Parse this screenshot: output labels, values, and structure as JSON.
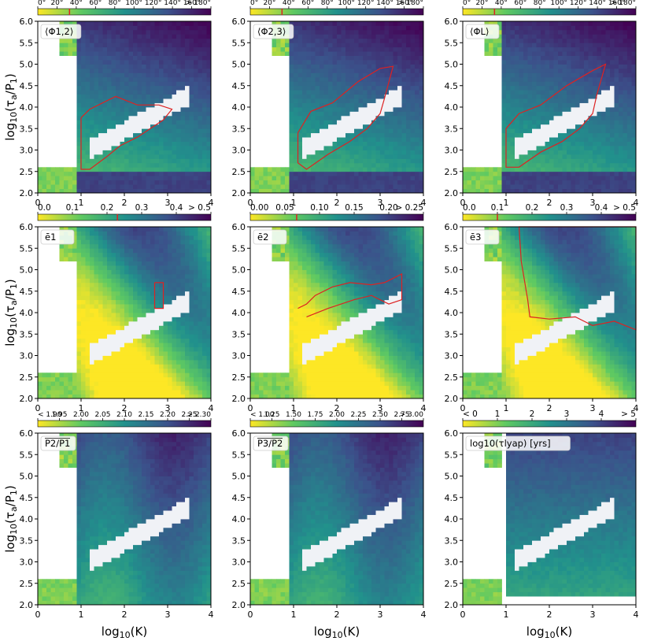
{
  "figure": {
    "x_ticks": [
      "0",
      "1",
      "2",
      "3",
      "4"
    ],
    "y_ticks": [
      "2.0",
      "2.5",
      "3.0",
      "3.5",
      "4.0",
      "4.5",
      "5.0",
      "5.5",
      "6.0"
    ],
    "xlabel_base": "log",
    "xlabel_sub": "10",
    "xlabel_arg": "(K)",
    "ylabel_base": "log",
    "ylabel_sub": "10",
    "ylabel_arg": "(τ",
    "ylabel_sub2": "a",
    "ylabel_tail": "/P",
    "ylabel_sub3": "1",
    "ylabel_end": ")"
  },
  "chart_data": [
    {
      "type": "heatmap",
      "panel": "phi12",
      "legend_text": "⟨Φ1,2⟩",
      "colorbar_ticks": [
        "0°",
        "20°",
        "40°",
        "60°",
        "80°",
        "100°",
        "120°",
        "140°",
        "160°",
        "> 180°"
      ],
      "colorbar_range": [
        0,
        180
      ],
      "colorbar_marker": 33,
      "xlim": [
        0,
        4
      ],
      "ylim": [
        2,
        6
      ],
      "colormap": "viridis_r",
      "contour_color": "#dd2222",
      "contour_outline": [
        [
          1.0,
          3.75
        ],
        [
          1.0,
          2.55
        ],
        [
          1.2,
          2.55
        ],
        [
          1.6,
          2.85
        ],
        [
          1.9,
          3.1
        ],
        [
          2.3,
          3.3
        ],
        [
          2.6,
          3.5
        ],
        [
          2.9,
          3.7
        ],
        [
          3.1,
          3.95
        ],
        [
          2.8,
          4.05
        ],
        [
          2.3,
          4.05
        ],
        [
          1.8,
          4.25
        ],
        [
          1.2,
          3.95
        ],
        [
          1.0,
          3.75
        ]
      ]
    },
    {
      "type": "heatmap",
      "panel": "phi23",
      "legend_text": "⟨Φ2,3⟩",
      "colorbar_ticks": [
        "0°",
        "20°",
        "40°",
        "60°",
        "80°",
        "100°",
        "120°",
        "140°",
        "160°",
        "> 180°"
      ],
      "colorbar_range": [
        0,
        180
      ],
      "colorbar_marker": 33,
      "xlim": [
        0,
        4
      ],
      "ylim": [
        2,
        6
      ],
      "colormap": "viridis_r",
      "contour_color": "#dd2222",
      "contour_outline": [
        [
          1.1,
          3.4
        ],
        [
          1.1,
          2.7
        ],
        [
          1.3,
          2.55
        ],
        [
          1.8,
          2.9
        ],
        [
          2.3,
          3.2
        ],
        [
          2.7,
          3.5
        ],
        [
          3.0,
          3.85
        ],
        [
          3.1,
          4.2
        ],
        [
          3.3,
          4.95
        ],
        [
          3.0,
          4.9
        ],
        [
          2.5,
          4.6
        ],
        [
          1.9,
          4.1
        ],
        [
          1.4,
          3.9
        ],
        [
          1.1,
          3.4
        ]
      ]
    },
    {
      "type": "heatmap",
      "panel": "phiL",
      "legend_text": "⟨ΦL⟩",
      "colorbar_ticks": [
        "0°",
        "20°",
        "40°",
        "60°",
        "80°",
        "100°",
        "120°",
        "140°",
        "160°",
        "> 180°"
      ],
      "colorbar_range": [
        0,
        180
      ],
      "colorbar_marker": 33,
      "xlim": [
        0,
        4
      ],
      "ylim": [
        2,
        6
      ],
      "colormap": "viridis_r",
      "contour_color": "#dd2222",
      "contour_outline": [
        [
          1.0,
          3.5
        ],
        [
          1.0,
          2.6
        ],
        [
          1.3,
          2.6
        ],
        [
          1.8,
          2.95
        ],
        [
          2.3,
          3.2
        ],
        [
          2.7,
          3.5
        ],
        [
          3.0,
          3.85
        ],
        [
          3.1,
          4.3
        ],
        [
          3.3,
          5.0
        ],
        [
          3.0,
          4.85
        ],
        [
          2.4,
          4.5
        ],
        [
          1.8,
          4.05
        ],
        [
          1.3,
          3.85
        ],
        [
          1.0,
          3.5
        ]
      ]
    },
    {
      "type": "heatmap",
      "panel": "e1",
      "legend_text": "ē1",
      "colorbar_ticks": [
        "0.0",
        "0.1",
        "0.2",
        "0.3",
        "0.4",
        "> 0.5"
      ],
      "colorbar_range": [
        0,
        0.5
      ],
      "colorbar_marker": 0.23,
      "xlim": [
        0,
        4
      ],
      "ylim": [
        2,
        6
      ],
      "colormap": "viridis_r",
      "contour_color": "#dd2222",
      "contour_outline": [
        [
          2.7,
          4.7
        ],
        [
          2.9,
          4.7
        ],
        [
          2.9,
          4.1
        ],
        [
          2.7,
          4.1
        ],
        [
          2.7,
          4.7
        ]
      ]
    },
    {
      "type": "heatmap",
      "panel": "e2",
      "legend_text": "ē2",
      "colorbar_ticks": [
        "0.00",
        "0.05",
        "0.10",
        "0.15",
        "0.20",
        "> 0.25"
      ],
      "colorbar_range": [
        0,
        0.25
      ],
      "colorbar_marker": 0.067,
      "xlim": [
        0,
        4
      ],
      "ylim": [
        2,
        6
      ],
      "colormap": "viridis_r",
      "contour_color": "#dd2222",
      "contour_outline": [
        [
          1.1,
          4.1
        ],
        [
          1.3,
          4.2
        ],
        [
          1.5,
          4.4
        ],
        [
          1.9,
          4.6
        ],
        [
          2.3,
          4.7
        ],
        [
          2.8,
          4.65
        ],
        [
          3.1,
          4.7
        ],
        [
          3.5,
          4.9
        ],
        [
          3.5,
          4.3
        ],
        [
          3.2,
          4.2
        ],
        [
          2.8,
          4.4
        ],
        [
          2.4,
          4.3
        ],
        [
          1.8,
          4.1
        ],
        [
          1.3,
          3.9
        ]
      ]
    },
    {
      "type": "heatmap",
      "panel": "e3",
      "legend_text": "ē3",
      "colorbar_ticks": [
        "0.0",
        "0.1",
        "0.2",
        "0.3",
        "0.4",
        "> 0.5"
      ],
      "colorbar_range": [
        0,
        0.5
      ],
      "colorbar_marker": 0.1,
      "xlim": [
        0,
        4
      ],
      "ylim": [
        2,
        6
      ],
      "colormap": "viridis_r",
      "contour_color": "#dd2222",
      "contour_outline": [
        [
          1.3,
          6.0
        ],
        [
          4.0,
          6.0
        ],
        [
          4.0,
          3.6
        ],
        [
          3.5,
          3.8
        ],
        [
          3.0,
          3.7
        ],
        [
          2.6,
          3.9
        ],
        [
          2.0,
          3.85
        ],
        [
          1.55,
          3.9
        ],
        [
          1.5,
          4.3
        ],
        [
          1.35,
          5.2
        ],
        [
          1.3,
          6.0
        ]
      ]
    },
    {
      "type": "heatmap",
      "panel": "p2p1",
      "legend_text": "P2/P1 (overlined)",
      "colorbar_ticks": [
        "< 1.90",
        "1.95",
        "2.00",
        "2.05",
        "2.10",
        "2.15",
        "2.20",
        "2.25",
        "> 2.30"
      ],
      "colorbar_range": [
        1.9,
        2.3
      ],
      "xlim": [
        0,
        4
      ],
      "ylim": [
        2,
        6
      ],
      "colormap": "viridis_r"
    },
    {
      "type": "heatmap",
      "panel": "p3p2",
      "legend_text": "P3/P2 (overlined)",
      "colorbar_ticks": [
        "< 1.00",
        "1.25",
        "1.50",
        "1.75",
        "2.00",
        "2.25",
        "2.50",
        "2.75",
        "> 3.00"
      ],
      "colorbar_range": [
        1.0,
        3.0
      ],
      "xlim": [
        0,
        4
      ],
      "ylim": [
        2,
        6
      ],
      "colormap": "viridis_r"
    },
    {
      "type": "heatmap",
      "panel": "lyap",
      "legend_text": "log10(τlyap) [yrs]",
      "colorbar_ticks": [
        "< 0",
        "1",
        "2",
        "3",
        "4",
        "> 5"
      ],
      "colorbar_range": [
        0,
        5
      ],
      "xlim": [
        0,
        4
      ],
      "ylim": [
        2,
        6
      ],
      "colormap": "viridis_r"
    }
  ]
}
